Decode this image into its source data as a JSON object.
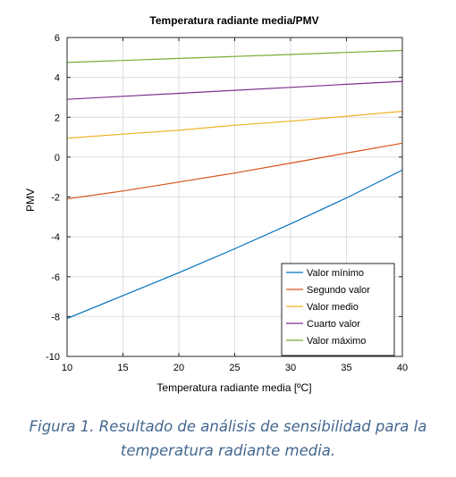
{
  "chart_data": {
    "type": "line",
    "title": "Temperatura radiante media/PMV",
    "xlabel": "Temperatura radiante media [ºC]",
    "ylabel": "PMV",
    "xlim": [
      10,
      40
    ],
    "ylim": [
      -10,
      6
    ],
    "xticks": [
      10,
      15,
      20,
      25,
      30,
      35,
      40
    ],
    "yticks": [
      -10,
      -8,
      -6,
      -4,
      -2,
      0,
      2,
      4,
      6
    ],
    "grid": true,
    "legend_position": "bottom-right",
    "x": [
      10,
      15,
      20,
      25,
      30,
      35,
      40
    ],
    "series": [
      {
        "name": "Valor mínimo",
        "color": "#0072bd",
        "values": [
          -8.1,
          -6.95,
          -5.8,
          -4.6,
          -3.35,
          -2.05,
          -0.65
        ]
      },
      {
        "name": "Segundo valor",
        "color": "#d95319",
        "values": [
          -2.1,
          -1.7,
          -1.25,
          -0.8,
          -0.3,
          0.2,
          0.7
        ]
      },
      {
        "name": "Valor medio",
        "color": "#edb120",
        "values": [
          0.95,
          1.15,
          1.35,
          1.6,
          1.8,
          2.05,
          2.3
        ]
      },
      {
        "name": "Cuarto valor",
        "color": "#7e2f8e",
        "values": [
          2.9,
          3.05,
          3.2,
          3.35,
          3.5,
          3.65,
          3.8
        ]
      },
      {
        "name": "Valor máximo",
        "color": "#77ac30",
        "values": [
          4.75,
          4.85,
          4.95,
          5.05,
          5.15,
          5.25,
          5.35
        ]
      }
    ]
  },
  "caption": {
    "line1": "Figura 1. Resultado de análisis de sensibilidad para la",
    "line2": "temperatura radiante media."
  }
}
